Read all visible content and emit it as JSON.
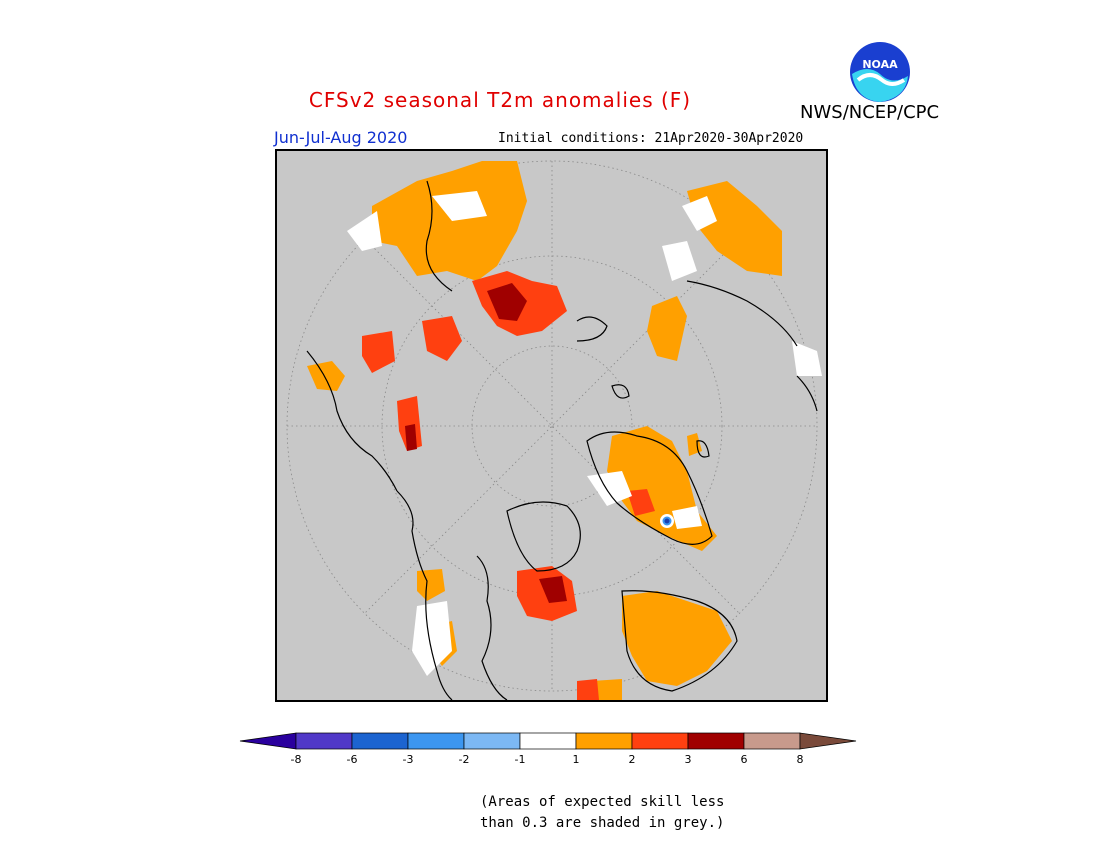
{
  "header": {
    "title": "CFSv2 seasonal T2m anomalies (F)",
    "agency": "NWS/NCEP/CPC",
    "period": "Jun-Jul-Aug 2020",
    "initial_conditions": "Initial conditions: 21Apr2020-30Apr2020",
    "logo_text": "NOAA"
  },
  "legend": {
    "colors": [
      "#2a009e",
      "#5038c8",
      "#1c64d0",
      "#3c96f0",
      "#7cb8f4",
      "#ffffff",
      "#ffa000",
      "#ff4010",
      "#a00000",
      "#c89a8c",
      "#7a4a3a"
    ],
    "labels": [
      "-8",
      "-6",
      "-3",
      "-2",
      "-1",
      "1",
      "2",
      "3",
      "6",
      "8"
    ]
  },
  "colors": {
    "grey_skill": "#c8c8c8",
    "anom_1_2": "#ffa000",
    "anom_2_3": "#ff4010",
    "anom_3_6": "#a00000",
    "anom_white": "#ffffff"
  },
  "note": {
    "line1": "(Areas of expected skill less",
    "line2": "than 0.3 are shaded in grey.)"
  }
}
